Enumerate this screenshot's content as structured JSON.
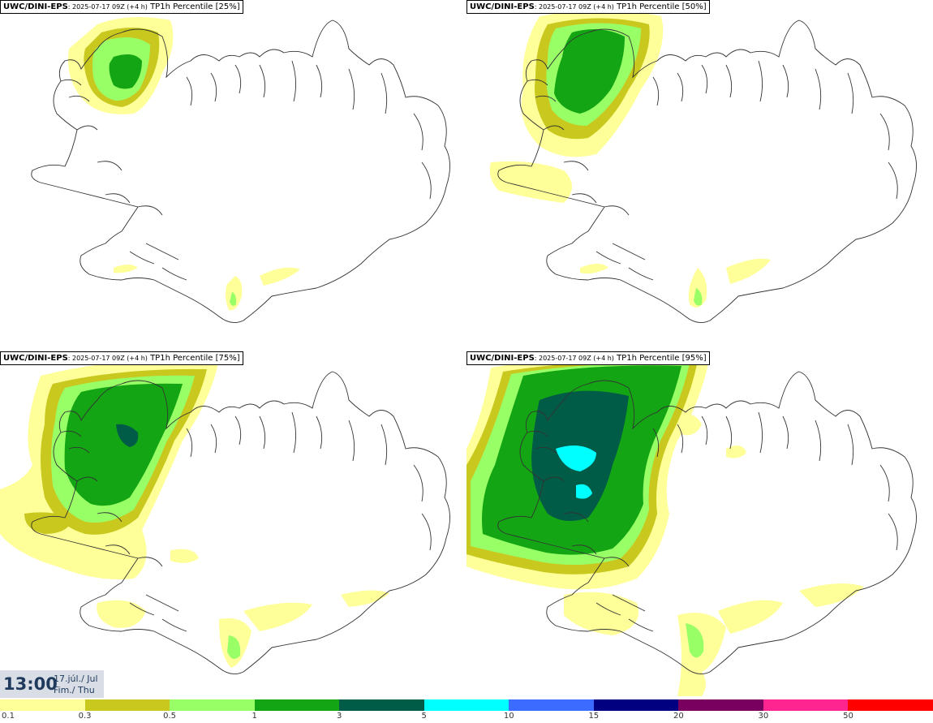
{
  "panels": [
    {
      "model": "UWC/DINI-EPS",
      "run": ": 2025-07-17 09Z (+4 h)",
      "param": " TP1h Percentile [25%]"
    },
    {
      "model": "UWC/DINI-EPS",
      "run": ": 2025-07-17 09Z (+4 h)",
      "param": " TP1h Percentile [50%]"
    },
    {
      "model": "UWC/DINI-EPS",
      "run": ": 2025-07-17 09Z (+4 h)",
      "param": " TP1h Percentile [75%]"
    },
    {
      "model": "UWC/DINI-EPS",
      "run": ": 2025-07-17 09Z (+4 h)",
      "param": " TP1h Percentile [95%]"
    }
  ],
  "time": {
    "hour": "13:00",
    "date_line1": "17.júl./ Jul",
    "date_line2": "Fim./ Thu"
  },
  "legend": {
    "ticks": [
      "0.1",
      "0.3",
      "0.5",
      "1",
      "3",
      "5",
      "10",
      "15",
      "20",
      "30",
      "50"
    ],
    "colors": [
      "#ffff99",
      "#c8c81e",
      "#99ff66",
      "#14a514",
      "#005c46",
      "#00ffff",
      "#3b6cff",
      "#000080",
      "#7a0060",
      "#ff2590",
      "#ff0000"
    ]
  },
  "colors": {
    "level_0_1": "#ffff99",
    "level_0_3": "#c8c81e",
    "level_0_5": "#99ff66",
    "level_1": "#14a514",
    "level_3": "#005c46",
    "level_5": "#00ffff",
    "coastline": "#333333"
  }
}
